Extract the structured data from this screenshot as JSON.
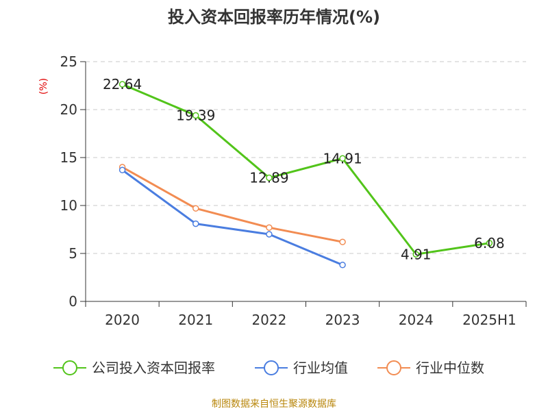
{
  "chart_data": {
    "type": "line",
    "title": "投入资本回报率历年情况(%)",
    "ylabel": "(%)",
    "xlabel": "",
    "categories": [
      "2020",
      "2021",
      "2022",
      "2023",
      "2024",
      "2025H1"
    ],
    "ylim": [
      0,
      25
    ],
    "yticks": [
      0,
      5,
      10,
      15,
      20,
      25
    ],
    "grid": true,
    "legend_position": "bottom",
    "series": [
      {
        "name": "公司投入资本回报率",
        "color": "#52c41a",
        "values": [
          22.64,
          19.39,
          12.89,
          14.91,
          4.91,
          6.08
        ],
        "labels": [
          "22.64",
          "19.39",
          "12.89",
          "14.91",
          "4.91",
          "6.08"
        ]
      },
      {
        "name": "行业均值",
        "color": "#4a7de0",
        "values": [
          13.7,
          8.1,
          7.0,
          3.8,
          null,
          null
        ]
      },
      {
        "name": "行业中位数",
        "color": "#f28c52",
        "values": [
          14.0,
          9.7,
          7.7,
          6.2,
          null,
          null
        ]
      }
    ]
  },
  "source": "制图数据来自恒生聚源数据库"
}
